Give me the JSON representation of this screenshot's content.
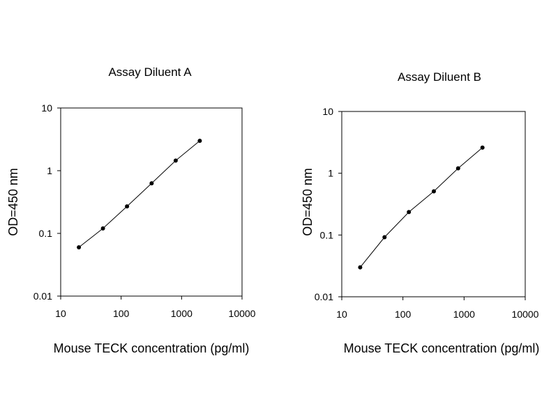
{
  "chart_data": [
    {
      "type": "line",
      "title": "Assay Diluent A",
      "xlabel": "Mouse TECK concentration (pg/ml)",
      "ylabel": "OD=450 nm",
      "xscale": "log",
      "yscale": "log",
      "xlim": [
        10,
        10000
      ],
      "ylim": [
        0.01,
        10
      ],
      "xticks": [
        "10",
        "100",
        "1000",
        "10000"
      ],
      "yticks": [
        "0.01",
        "0.1",
        "1",
        "10"
      ],
      "grid": false,
      "legend": "none",
      "series": [
        {
          "x": [
            20,
            50,
            125,
            320,
            800,
            2000
          ],
          "y": [
            0.06,
            0.12,
            0.27,
            0.63,
            1.45,
            3.0
          ]
        }
      ]
    },
    {
      "type": "line",
      "title": "Assay Diluent B",
      "xlabel": "Mouse TECK concentration (pg/ml)",
      "ylabel": "OD=450 nm",
      "xscale": "log",
      "yscale": "log",
      "xlim": [
        10,
        10000
      ],
      "ylim": [
        0.01,
        10
      ],
      "xticks": [
        "10",
        "100",
        "1000",
        "10000"
      ],
      "yticks": [
        "0.01",
        "0.1",
        "1",
        "10"
      ],
      "grid": false,
      "legend": "none",
      "series": [
        {
          "x": [
            20,
            50,
            125,
            320,
            800,
            2000
          ],
          "y": [
            0.03,
            0.092,
            0.235,
            0.51,
            1.2,
            2.6
          ]
        }
      ]
    }
  ]
}
